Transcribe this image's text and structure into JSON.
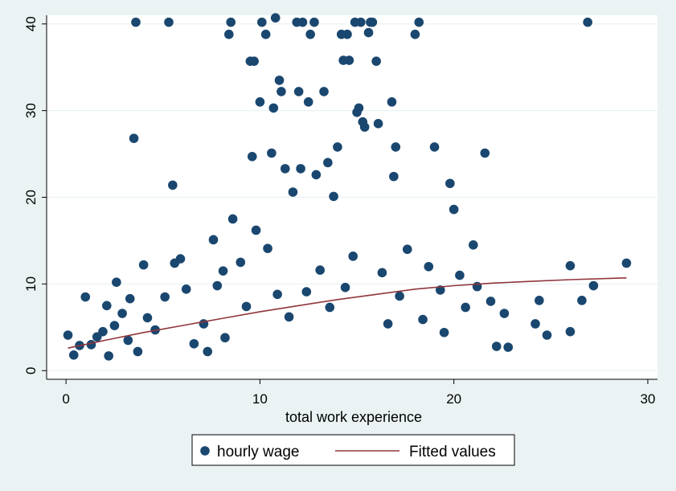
{
  "chart_data": {
    "type": "scatter",
    "title": "",
    "xlabel": "total work experience",
    "ylabel": "",
    "xlim": [
      -1,
      30.5
    ],
    "ylim": [
      -1,
      41
    ],
    "x_ticks": [
      0,
      10,
      20,
      30
    ],
    "y_ticks": [
      0,
      10,
      20,
      30,
      40
    ],
    "grid": "horizontal",
    "legend_position": "bottom",
    "colors": {
      "background": "#eaf2f3",
      "plot_area": "#ffffff",
      "grid": "#eaf2f3",
      "points": "#1a476f",
      "fit_line": "#90353b"
    },
    "series": [
      {
        "name": "hourly wage",
        "kind": "scatter",
        "points": [
          [
            0.1,
            4.1
          ],
          [
            0.4,
            1.8
          ],
          [
            0.7,
            2.9
          ],
          [
            1.0,
            8.5
          ],
          [
            1.3,
            3.0
          ],
          [
            1.6,
            3.9
          ],
          [
            1.9,
            4.5
          ],
          [
            2.1,
            7.5
          ],
          [
            2.2,
            1.7
          ],
          [
            2.5,
            5.2
          ],
          [
            2.6,
            10.2
          ],
          [
            2.9,
            6.6
          ],
          [
            3.2,
            3.5
          ],
          [
            3.3,
            8.3
          ],
          [
            3.5,
            26.8
          ],
          [
            3.6,
            40.2
          ],
          [
            3.7,
            2.2
          ],
          [
            4.0,
            12.2
          ],
          [
            4.2,
            6.1
          ],
          [
            4.6,
            4.7
          ],
          [
            5.1,
            8.5
          ],
          [
            5.3,
            40.2
          ],
          [
            5.5,
            21.4
          ],
          [
            5.6,
            12.4
          ],
          [
            5.9,
            12.9
          ],
          [
            6.2,
            9.4
          ],
          [
            6.6,
            3.1
          ],
          [
            7.1,
            5.4
          ],
          [
            7.3,
            2.2
          ],
          [
            7.6,
            15.1
          ],
          [
            7.8,
            9.8
          ],
          [
            8.1,
            11.5
          ],
          [
            8.2,
            3.8
          ],
          [
            8.4,
            38.8
          ],
          [
            8.5,
            40.2
          ],
          [
            8.6,
            17.5
          ],
          [
            9.0,
            12.5
          ],
          [
            9.3,
            7.4
          ],
          [
            9.5,
            35.7
          ],
          [
            9.6,
            24.7
          ],
          [
            9.7,
            35.7
          ],
          [
            9.8,
            16.2
          ],
          [
            10.0,
            31.0
          ],
          [
            10.1,
            40.2
          ],
          [
            10.3,
            38.8
          ],
          [
            10.4,
            14.1
          ],
          [
            10.6,
            25.1
          ],
          [
            10.7,
            30.3
          ],
          [
            10.8,
            40.7
          ],
          [
            10.9,
            8.8
          ],
          [
            11.0,
            33.5
          ],
          [
            11.1,
            32.2
          ],
          [
            11.3,
            23.3
          ],
          [
            11.5,
            6.2
          ],
          [
            11.7,
            20.6
          ],
          [
            11.9,
            40.2
          ],
          [
            12.0,
            32.2
          ],
          [
            12.1,
            23.3
          ],
          [
            12.2,
            40.2
          ],
          [
            12.4,
            9.1
          ],
          [
            12.5,
            31.0
          ],
          [
            12.6,
            38.8
          ],
          [
            12.8,
            40.2
          ],
          [
            12.9,
            22.6
          ],
          [
            13.1,
            11.6
          ],
          [
            13.3,
            32.2
          ],
          [
            13.5,
            24.0
          ],
          [
            13.6,
            7.3
          ],
          [
            13.8,
            20.1
          ],
          [
            14.0,
            25.8
          ],
          [
            14.2,
            38.8
          ],
          [
            14.3,
            35.8
          ],
          [
            14.4,
            9.6
          ],
          [
            14.5,
            38.8
          ],
          [
            14.6,
            35.8
          ],
          [
            14.8,
            13.2
          ],
          [
            14.9,
            40.2
          ],
          [
            15.0,
            29.8
          ],
          [
            15.1,
            30.3
          ],
          [
            15.2,
            40.2
          ],
          [
            15.3,
            28.7
          ],
          [
            15.4,
            28.1
          ],
          [
            15.6,
            39.0
          ],
          [
            15.7,
            40.2
          ],
          [
            15.8,
            40.2
          ],
          [
            16.0,
            35.7
          ],
          [
            16.1,
            28.5
          ],
          [
            16.3,
            11.3
          ],
          [
            16.6,
            5.4
          ],
          [
            16.8,
            31.0
          ],
          [
            16.9,
            22.4
          ],
          [
            17.0,
            25.8
          ],
          [
            17.2,
            8.6
          ],
          [
            17.6,
            14.0
          ],
          [
            18.0,
            38.8
          ],
          [
            18.2,
            40.2
          ],
          [
            18.4,
            5.9
          ],
          [
            18.7,
            12.0
          ],
          [
            19.0,
            25.8
          ],
          [
            19.3,
            9.3
          ],
          [
            19.5,
            4.4
          ],
          [
            19.8,
            21.6
          ],
          [
            20.0,
            18.6
          ],
          [
            20.3,
            11.0
          ],
          [
            20.6,
            7.3
          ],
          [
            21.0,
            14.5
          ],
          [
            21.2,
            9.7
          ],
          [
            21.6,
            25.1
          ],
          [
            21.9,
            8.0
          ],
          [
            22.2,
            2.8
          ],
          [
            22.6,
            6.6
          ],
          [
            22.8,
            2.7
          ],
          [
            24.2,
            5.4
          ],
          [
            24.4,
            8.1
          ],
          [
            24.8,
            4.1
          ],
          [
            26.0,
            12.1
          ],
          [
            26.0,
            4.5
          ],
          [
            26.6,
            8.1
          ],
          [
            26.9,
            40.2
          ],
          [
            27.2,
            9.8
          ],
          [
            28.9,
            12.4
          ]
        ]
      },
      {
        "name": "Fitted values",
        "kind": "line",
        "x": [
          0.1,
          2,
          4,
          6,
          8,
          10,
          12,
          14,
          16,
          18,
          20,
          22,
          24,
          26,
          28.9
        ],
        "y": [
          2.6,
          3.5,
          4.4,
          5.2,
          6.0,
          6.8,
          7.5,
          8.2,
          8.8,
          9.4,
          9.8,
          10.1,
          10.3,
          10.5,
          10.7
        ]
      }
    ]
  }
}
